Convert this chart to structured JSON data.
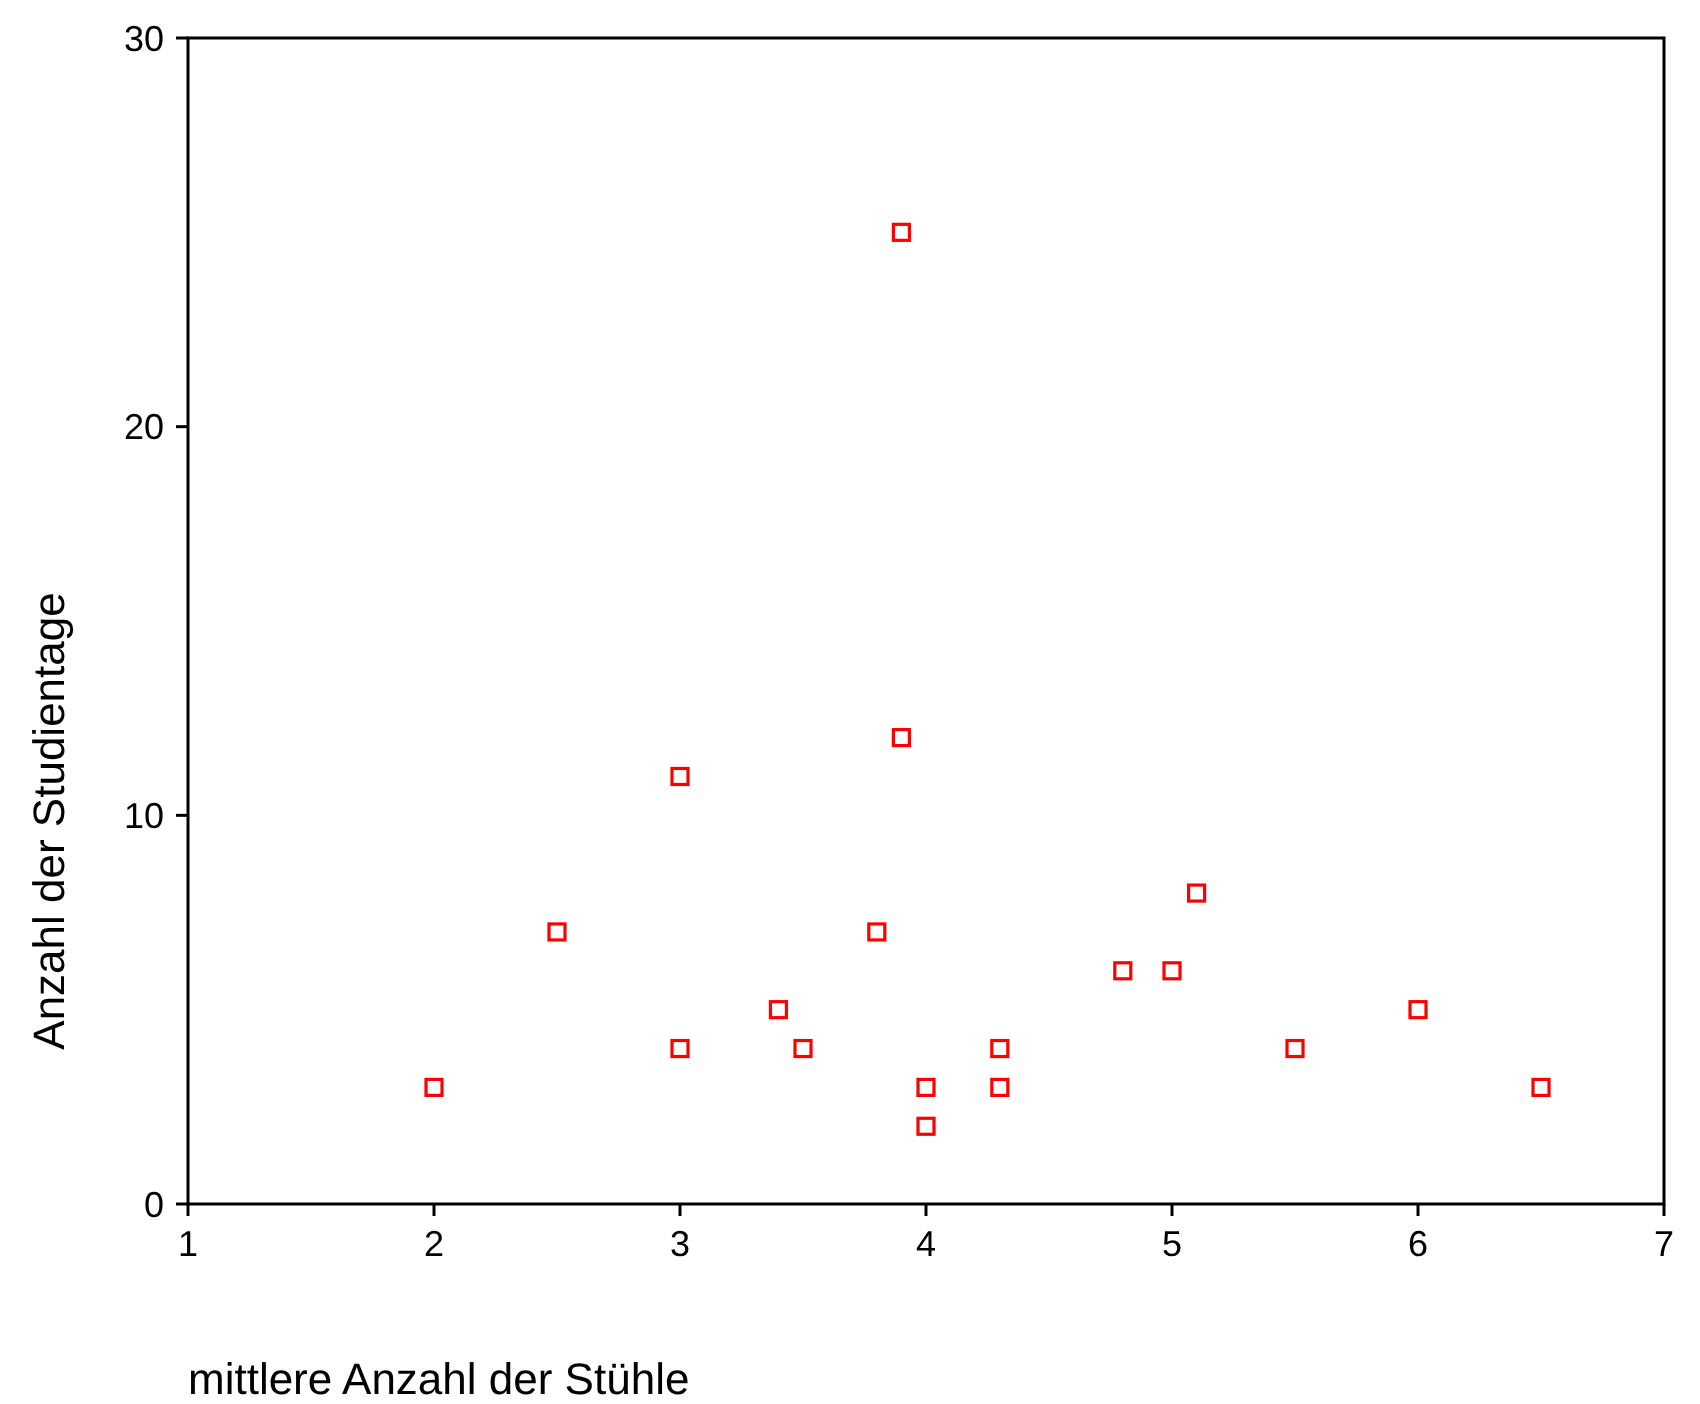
{
  "chart_data": {
    "type": "scatter",
    "xlabel": "mittlere Anzahl der Stühle",
    "ylabel": "Anzahl der Studientage",
    "x": [
      2,
      2.5,
      3,
      3,
      3.4,
      3.5,
      3.8,
      3.9,
      3.9,
      4,
      4,
      4.3,
      4.3,
      4.8,
      5,
      5.1,
      5.5,
      6,
      6.5
    ],
    "series": [
      {
        "color": "#ff0000",
        "values": [
          3,
          7,
          4,
          11,
          5,
          4,
          7,
          12,
          25,
          3,
          2,
          4,
          3,
          6,
          6,
          8,
          4,
          5,
          3
        ]
      }
    ],
    "xlim": [
      1,
      7
    ],
    "xticks": [
      1,
      2,
      3,
      4,
      5,
      6,
      7
    ],
    "ylim": [
      0,
      30
    ],
    "yticks": [
      0,
      10,
      20,
      30
    ],
    "grid": false,
    "marker": "square"
  }
}
